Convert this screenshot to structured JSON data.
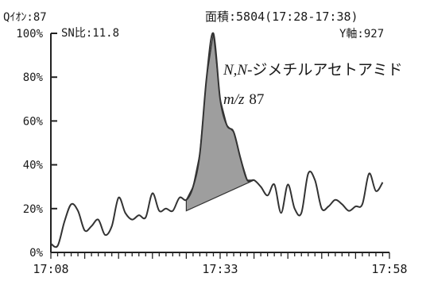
{
  "header": {
    "ion": "Qｲｵﾝ:87",
    "sn": "SN比:11.8",
    "area": "面積:5804(17:28-17:38)",
    "yaxis": "Y軸:927"
  },
  "annotation": {
    "compound_prefix": "N,N",
    "compound_suffix": "-ジメチルアセトアミド",
    "mz_prefix": "m/z",
    "mz_value": "87"
  },
  "colors": {
    "trace": "#333333",
    "peak_fill": "#9e9e9e",
    "axis": "#222222",
    "text": "#1a1a1a"
  },
  "chart_data": {
    "type": "line",
    "xlabel": "",
    "ylabel": "",
    "x_unit": "minutes (clock time 17:08–17:58)",
    "x_ticks": [
      "17:08",
      "17:33",
      "17:58"
    ],
    "y_ticks": [
      "0%",
      "20%",
      "40%",
      "60%",
      "80%",
      "100%"
    ],
    "ylim": [
      0,
      100
    ],
    "grid": false,
    "series": [
      {
        "x": [
          "17:08",
          "17:09",
          "17:10",
          "17:11",
          "17:12",
          "17:13",
          "17:14",
          "17:15",
          "17:16",
          "17:17",
          "17:18",
          "17:19",
          "17:20",
          "17:21",
          "17:22",
          "17:23",
          "17:24",
          "17:25",
          "17:26",
          "17:27",
          "17:28",
          "17:29",
          "17:30",
          "17:31",
          "17:32",
          "17:33",
          "17:34",
          "17:35",
          "17:36",
          "17:37",
          "17:38",
          "17:39",
          "17:40",
          "17:41",
          "17:42",
          "17:43",
          "17:44",
          "17:45",
          "17:46",
          "17:47",
          "17:48",
          "17:49",
          "17:50",
          "17:51",
          "17:52",
          "17:53",
          "17:54",
          "17:55",
          "17:56",
          "17:57"
        ],
        "values": [
          4,
          3,
          14,
          22,
          19,
          10,
          12,
          15,
          8,
          12,
          25,
          18,
          15,
          17,
          16,
          27,
          19,
          20,
          19,
          25,
          24,
          30,
          45,
          80,
          100,
          70,
          58,
          55,
          43,
          33,
          33,
          30,
          26,
          31,
          18,
          31,
          20,
          18,
          36,
          33,
          20,
          21,
          24,
          22,
          19,
          21,
          22,
          36,
          28,
          32
        ]
      }
    ],
    "shaded_peak": {
      "from": "17:28",
      "to": "17:38",
      "area": 5804,
      "baseline_from_value": 19,
      "baseline_to_value": 33
    }
  }
}
